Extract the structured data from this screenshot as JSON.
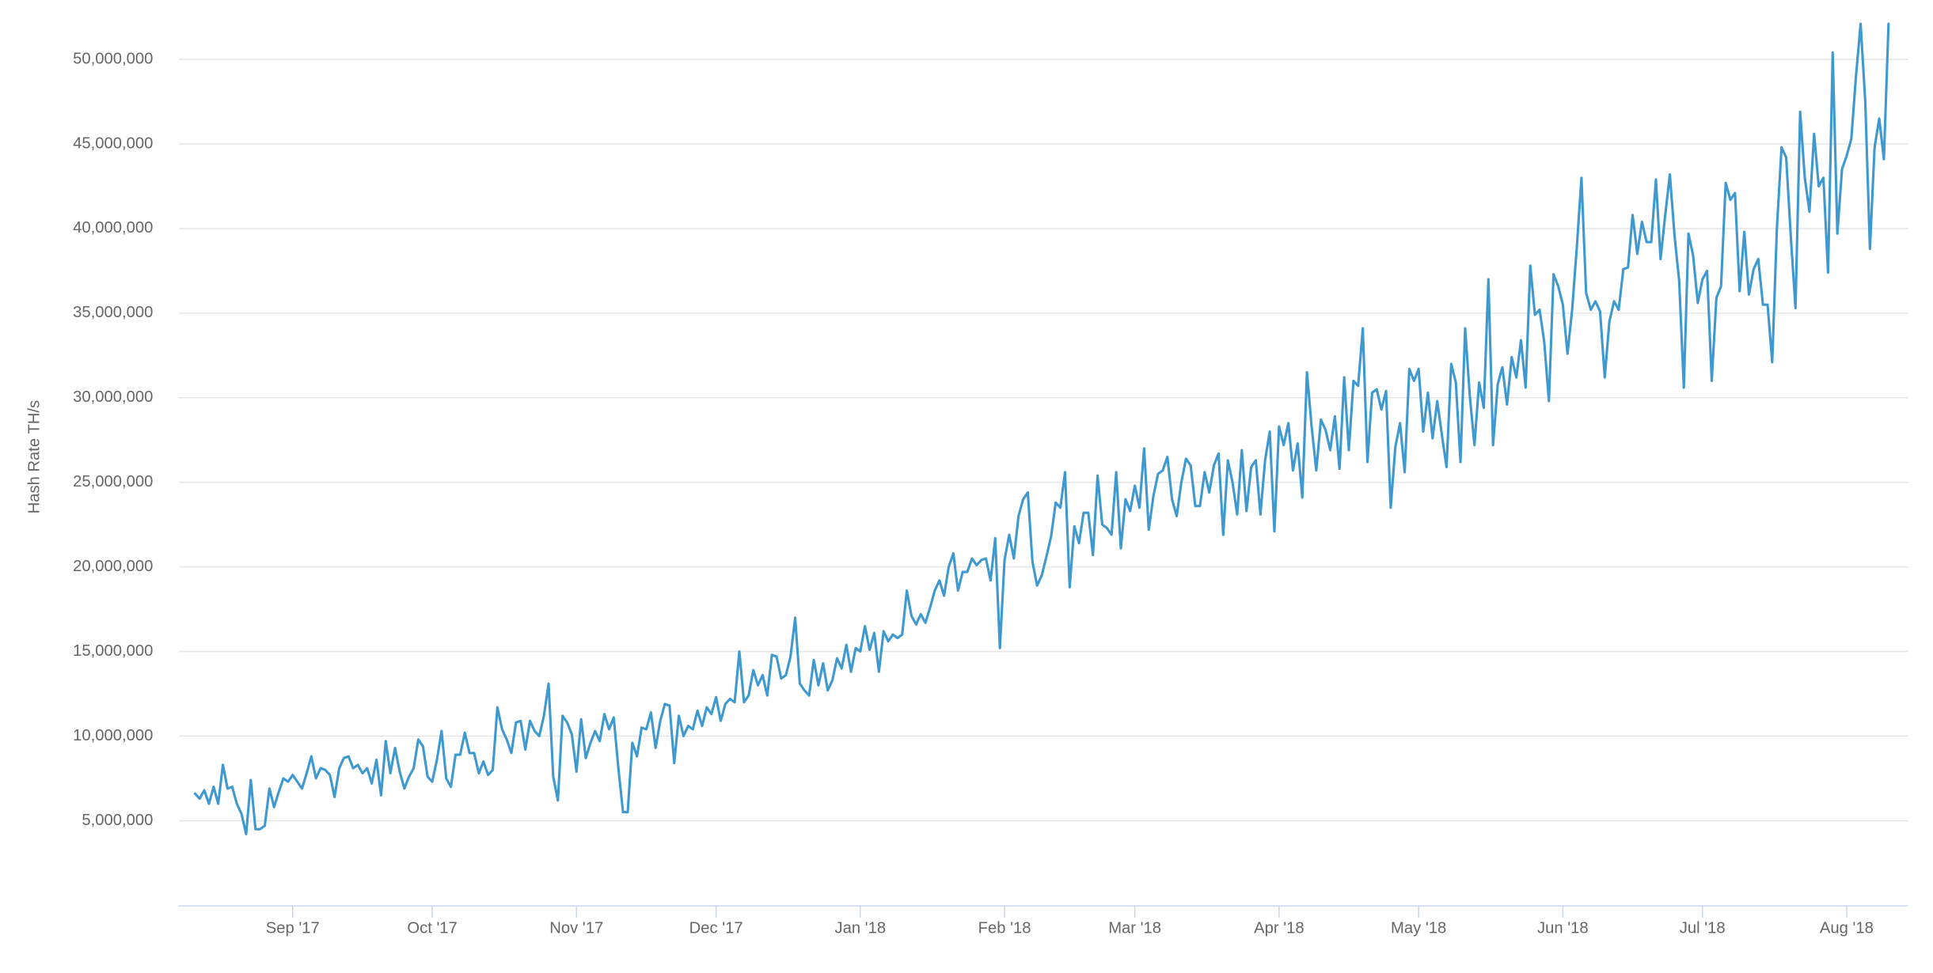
{
  "chart_data": {
    "type": "line",
    "y_label": "Hash Rate TH/s",
    "color": "#3f99d1",
    "grid": true,
    "xlim": [
      -3.44,
      368.2
    ],
    "xticks": [
      {
        "value": 21,
        "label": "Sep '17"
      },
      {
        "value": 51,
        "label": "Oct '17"
      },
      {
        "value": 82,
        "label": "Nov '17"
      },
      {
        "value": 112,
        "label": "Dec '17"
      },
      {
        "value": 143,
        "label": "Jan '18"
      },
      {
        "value": 174,
        "label": "Feb '18"
      },
      {
        "value": 202,
        "label": "Mar '18"
      },
      {
        "value": 233,
        "label": "Apr '18"
      },
      {
        "value": 263,
        "label": "May '18"
      },
      {
        "value": 294,
        "label": "Jun '18"
      },
      {
        "value": 324,
        "label": "Jul '18"
      },
      {
        "value": 355,
        "label": "Aug '18"
      }
    ],
    "ylim": [
      0,
      53000000
    ],
    "yticks": [
      {
        "value": 5000000,
        "label": "5,000,000"
      },
      {
        "value": 10000000,
        "label": "10,000,000"
      },
      {
        "value": 15000000,
        "label": "15,000,000"
      },
      {
        "value": 20000000,
        "label": "20,000,000"
      },
      {
        "value": 25000000,
        "label": "25,000,000"
      },
      {
        "value": 30000000,
        "label": "30,000,000"
      },
      {
        "value": 35000000,
        "label": "35,000,000"
      },
      {
        "value": 40000000,
        "label": "40,000,000"
      },
      {
        "value": 45000000,
        "label": "45,000,000"
      },
      {
        "value": 50000000,
        "label": "50,000,000"
      }
    ],
    "values": [
      6600000,
      6300000,
      6800000,
      6000000,
      7000000,
      6000000,
      8300000,
      6900000,
      7000000,
      6000000,
      5400000,
      4200000,
      7400000,
      4500000,
      4500000,
      4700000,
      6900000,
      5800000,
      6700000,
      7500000,
      7300000,
      7700000,
      7300000,
      6900000,
      7800000,
      8800000,
      7500000,
      8100000,
      8000000,
      7700000,
      6400000,
      8100000,
      8700000,
      8800000,
      8100000,
      8300000,
      7800000,
      8100000,
      7200000,
      8600000,
      6500000,
      9700000,
      7800000,
      9300000,
      7900000,
      6900000,
      7600000,
      8100000,
      9800000,
      9400000,
      7600000,
      7300000,
      8600000,
      10300000,
      7500000,
      7000000,
      8900000,
      8900000,
      10200000,
      9000000,
      9000000,
      7800000,
      8500000,
      7700000,
      8000000,
      11700000,
      10400000,
      9800000,
      9000000,
      10800000,
      10900000,
      9200000,
      10900000,
      10300000,
      10000000,
      11200000,
      13100000,
      7600000,
      6200000,
      11200000,
      10800000,
      10100000,
      7900000,
      11000000,
      8700000,
      9600000,
      10300000,
      9700000,
      11300000,
      10400000,
      11100000,
      8100000,
      5500000,
      5500000,
      9600000,
      8800000,
      10500000,
      10400000,
      11400000,
      9300000,
      10900000,
      11900000,
      11800000,
      8400000,
      11200000,
      10000000,
      10600000,
      10400000,
      11500000,
      10600000,
      11700000,
      11300000,
      12300000,
      10900000,
      11900000,
      12200000,
      12000000,
      15000000,
      12000000,
      12400000,
      13900000,
      13000000,
      13600000,
      12400000,
      14800000,
      14700000,
      13400000,
      13600000,
      14700000,
      17000000,
      13100000,
      12700000,
      12400000,
      14500000,
      13000000,
      14300000,
      12700000,
      13300000,
      14600000,
      14000000,
      15400000,
      13800000,
      15200000,
      15000000,
      16500000,
      15100000,
      16100000,
      13800000,
      16200000,
      15600000,
      16000000,
      15800000,
      16000000,
      18600000,
      17100000,
      16600000,
      17200000,
      16700000,
      17600000,
      18600000,
      19200000,
      18300000,
      20000000,
      20800000,
      18600000,
      19700000,
      19700000,
      20500000,
      20100000,
      20400000,
      20500000,
      19200000,
      21700000,
      15200000,
      20400000,
      21900000,
      20500000,
      23000000,
      24000000,
      24400000,
      20300000,
      18900000,
      19500000,
      20600000,
      21800000,
      23800000,
      23500000,
      25600000,
      18800000,
      22400000,
      21400000,
      23200000,
      23200000,
      20700000,
      25400000,
      22500000,
      22300000,
      21900000,
      25600000,
      21100000,
      24000000,
      23300000,
      24800000,
      23500000,
      27000000,
      22200000,
      24200000,
      25500000,
      25700000,
      26500000,
      24000000,
      23000000,
      25000000,
      26400000,
      26000000,
      23600000,
      23600000,
      25600000,
      24400000,
      26000000,
      26700000,
      21900000,
      26300000,
      25000000,
      23100000,
      26900000,
      23300000,
      25900000,
      26300000,
      23100000,
      26300000,
      28000000,
      22100000,
      28300000,
      27200000,
      28500000,
      25700000,
      27300000,
      24100000,
      31500000,
      28300000,
      25700000,
      28700000,
      28100000,
      26900000,
      28900000,
      25800000,
      31200000,
      26900000,
      31000000,
      30700000,
      34100000,
      26200000,
      30300000,
      30500000,
      29300000,
      30400000,
      23500000,
      27100000,
      28500000,
      25600000,
      31700000,
      31000000,
      31700000,
      28000000,
      30300000,
      27600000,
      29800000,
      27800000,
      25900000,
      32000000,
      30900000,
      26200000,
      34100000,
      30100000,
      27200000,
      30900000,
      29400000,
      37000000,
      27200000,
      30800000,
      31800000,
      29600000,
      32400000,
      31200000,
      33400000,
      30600000,
      37800000,
      34900000,
      35200000,
      33300000,
      29800000,
      37300000,
      36600000,
      35500000,
      32600000,
      35200000,
      38900000,
      43000000,
      36200000,
      35200000,
      35700000,
      35100000,
      31200000,
      34500000,
      35700000,
      35200000,
      37600000,
      37700000,
      40800000,
      38500000,
      40400000,
      39200000,
      39200000,
      42900000,
      38200000,
      40800000,
      43200000,
      39600000,
      36900000,
      30600000,
      39700000,
      38400000,
      35600000,
      37000000,
      37500000,
      31000000,
      35900000,
      36600000,
      42700000,
      41700000,
      42100000,
      36300000,
      39800000,
      36100000,
      37600000,
      38200000,
      35500000,
      35500000,
      32100000,
      40000000,
      44800000,
      44200000,
      39500000,
      35300000,
      46900000,
      43000000,
      41000000,
      45600000,
      42500000,
      43000000,
      37400000,
      50400000,
      39700000,
      43500000,
      44300000,
      45300000,
      49000000,
      52100000,
      47500000,
      38800000,
      44800000,
      46500000,
      44100000,
      52100000
    ]
  }
}
